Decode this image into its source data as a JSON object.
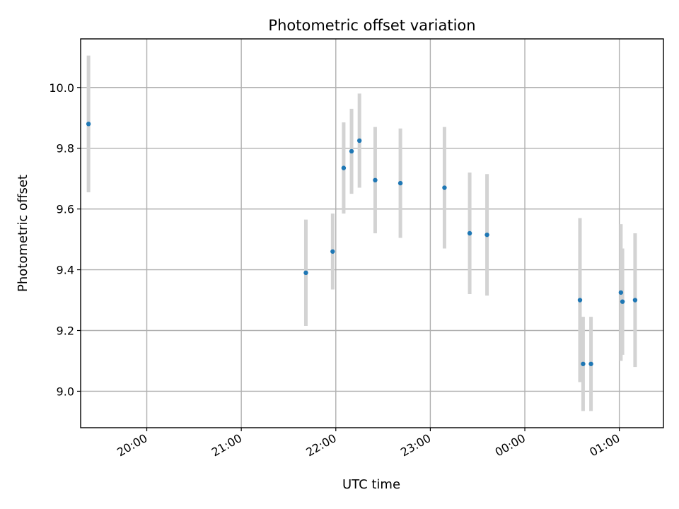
{
  "chart_data": {
    "type": "scatter",
    "title": "Photometric offset variation",
    "xlabel": "UTC time",
    "ylabel": "Photometric offset",
    "x_is_time": true,
    "xlim": [
      "19:18",
      "01:28"
    ],
    "ylim": [
      8.88,
      10.16
    ],
    "xticks": [
      "20:00",
      "21:00",
      "22:00",
      "23:00",
      "00:00",
      "01:00"
    ],
    "yticks": [
      9.0,
      9.2,
      9.4,
      9.6,
      9.8,
      10.0
    ],
    "grid": true,
    "colors": {
      "point": "#1f77b4",
      "errorbar": "#d3d3d3",
      "grid": "#b0b0b0"
    },
    "series": [
      {
        "x": [
          "19:23",
          "21:41",
          "21:58",
          "22:05",
          "22:10",
          "22:15",
          "22:25",
          "22:41",
          "23:09",
          "23:25",
          "23:36",
          "00:35",
          "00:37",
          "00:42",
          "01:01",
          "01:02",
          "01:10"
        ],
        "y": [
          9.88,
          9.39,
          9.46,
          9.735,
          9.79,
          9.825,
          9.695,
          9.685,
          9.67,
          9.52,
          9.515,
          9.3,
          9.09,
          9.09,
          9.325,
          9.295,
          9.3
        ],
        "yerr": [
          0.225,
          0.175,
          0.125,
          0.15,
          0.14,
          0.155,
          0.175,
          0.18,
          0.2,
          0.2,
          0.2,
          0.27,
          0.155,
          0.155,
          0.225,
          0.175,
          0.22
        ]
      }
    ]
  }
}
